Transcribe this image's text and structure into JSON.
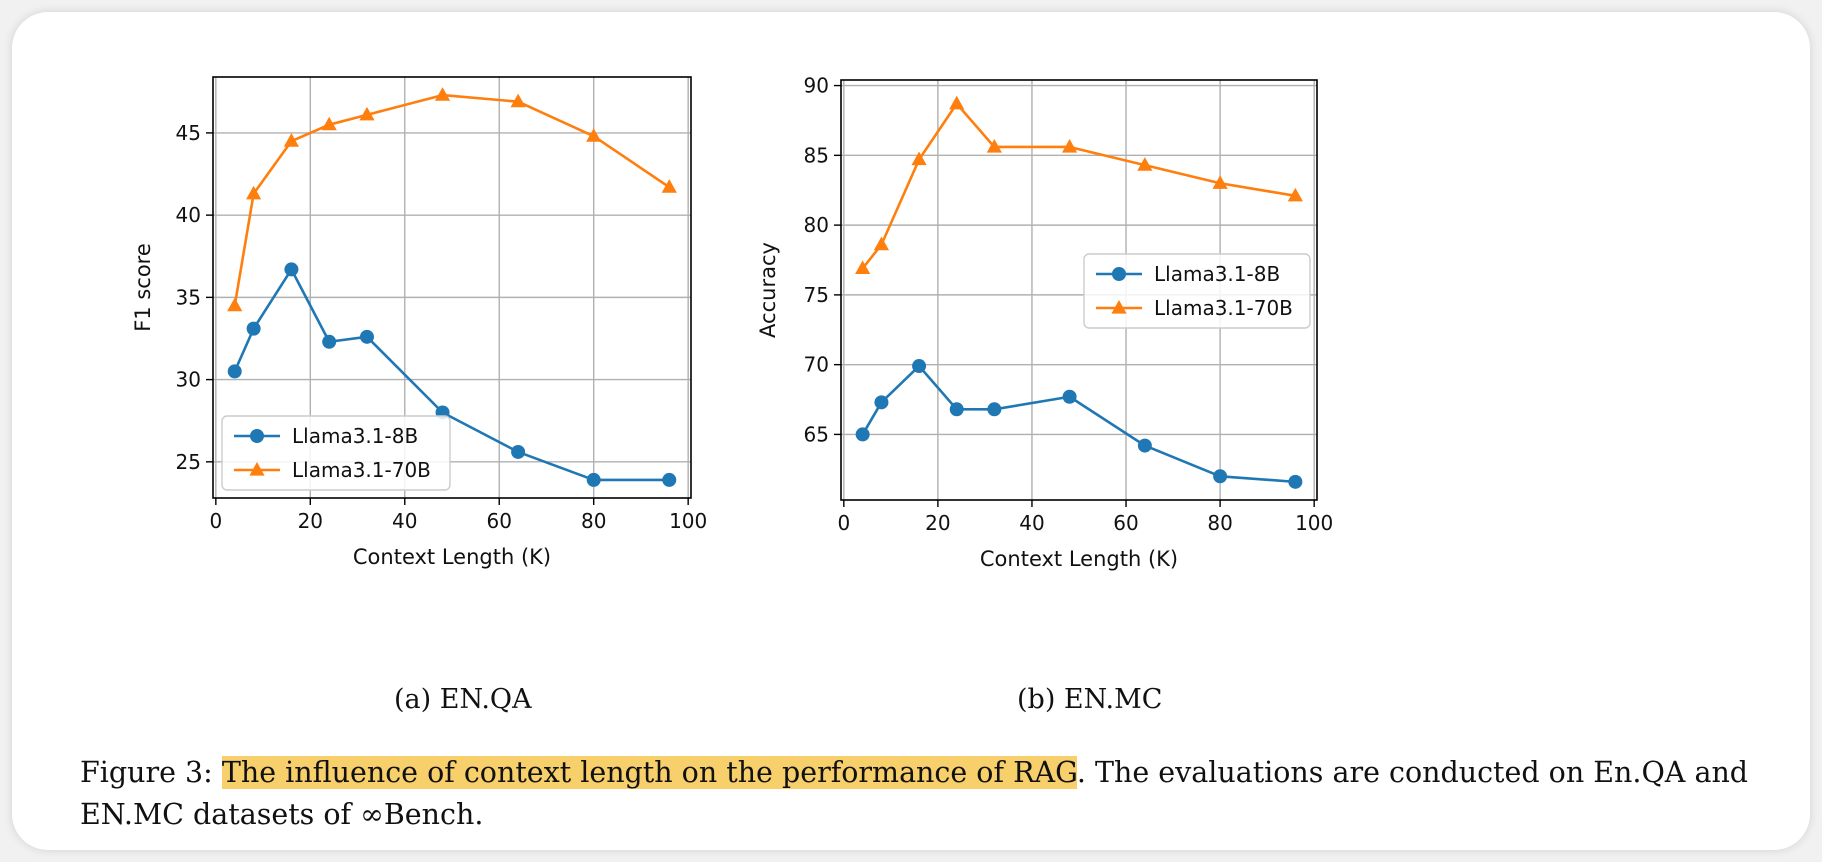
{
  "charts_meta": {
    "colors": {
      "blue": "#1f77b4",
      "orange": "#ff7f0e",
      "grid": "#b0b0b0",
      "highlight": "#f7cf6b"
    }
  },
  "chart_data": [
    {
      "type": "line",
      "title": "",
      "xlabel": "Context Length (K)",
      "ylabel": "F1 score",
      "xlim": [
        -0.6,
        100.6
      ],
      "ylim": [
        22.8,
        48.4
      ],
      "xticks": [
        0,
        20,
        40,
        60,
        80,
        100
      ],
      "yticks": [
        25,
        30,
        35,
        40,
        45
      ],
      "grid": true,
      "legend_position": "lower-left",
      "series": [
        {
          "name": "Llama3.1-8B",
          "color": "#1f77b4",
          "marker": "circle",
          "x": [
            4,
            8,
            16,
            24,
            32,
            48,
            64,
            80,
            96
          ],
          "y": [
            30.5,
            33.1,
            36.7,
            32.3,
            32.6,
            28.0,
            25.6,
            23.9,
            23.9
          ]
        },
        {
          "name": "Llama3.1-70B",
          "color": "#ff7f0e",
          "marker": "triangle",
          "x": [
            4,
            8,
            16,
            24,
            32,
            48,
            64,
            80,
            96
          ],
          "y": [
            34.5,
            41.3,
            44.5,
            45.5,
            46.1,
            47.3,
            46.9,
            44.8,
            41.7
          ]
        }
      ]
    },
    {
      "type": "line",
      "title": "",
      "xlabel": "Context Length (K)",
      "ylabel": "Accuracy",
      "xlim": [
        -0.6,
        100.6
      ],
      "ylim": [
        60.3,
        90.4
      ],
      "xticks": [
        0,
        20,
        40,
        60,
        80,
        100
      ],
      "yticks": [
        65,
        70,
        75,
        80,
        85,
        90
      ],
      "grid": true,
      "legend_position": "center-right",
      "series": [
        {
          "name": "Llama3.1-8B",
          "color": "#1f77b4",
          "marker": "circle",
          "x": [
            4,
            8,
            16,
            24,
            32,
            48,
            64,
            80,
            96
          ],
          "y": [
            65.0,
            67.3,
            69.9,
            66.8,
            66.8,
            67.7,
            64.2,
            62.0,
            61.6
          ]
        },
        {
          "name": "Llama3.1-70B",
          "color": "#ff7f0e",
          "marker": "triangle",
          "x": [
            4,
            8,
            16,
            24,
            32,
            48,
            64,
            80,
            96
          ],
          "y": [
            76.9,
            78.6,
            84.7,
            88.7,
            85.6,
            85.6,
            84.3,
            83.0,
            82.1
          ]
        }
      ]
    }
  ],
  "subcaptions": {
    "a": "(a) EN.QA",
    "b": "(b) EN.MC"
  },
  "caption": {
    "prefix": "Figure 3: ",
    "highlighted": "The influence of context length on the performance of RAG",
    "rest": ". The evaluations are conducted on En.QA and EN.MC datasets of ∞Bench."
  }
}
